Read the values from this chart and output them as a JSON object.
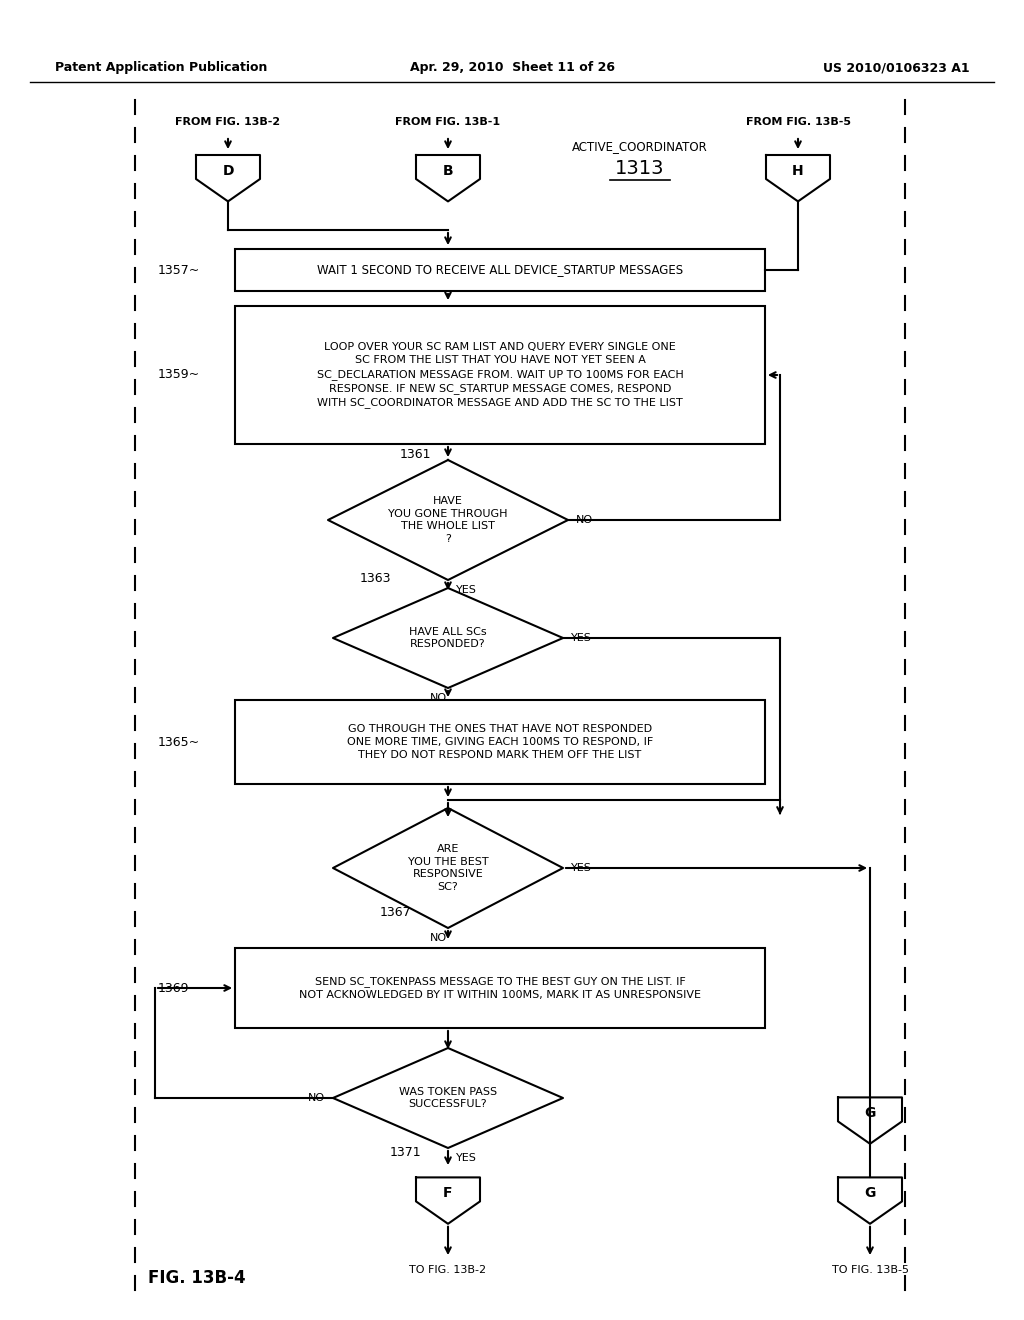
{
  "title_left": "Patent Application Publication",
  "title_mid": "Apr. 29, 2010  Sheet 11 of 26",
  "title_right": "US 2010/0106323 A1",
  "fig_label": "FIG. 13B-4",
  "page_bg": "#ffffff",
  "line_color": "#000000",
  "text_color": "#000000",
  "connector_D": "D",
  "connector_B": "B",
  "connector_H": "H",
  "connector_F": "F",
  "connector_G": "G",
  "label_from_D": "FROM FIG. 13B-2",
  "label_from_B": "FROM FIG. 13B-1",
  "label_from_H": "FROM FIG. 13B-5",
  "label_active": "ACTIVE_COORDINATOR",
  "label_1313": "1313",
  "box1357_text": "WAIT 1 SECOND TO RECEIVE ALL DEVICE_STARTUP MESSAGES",
  "label_1357": "1357",
  "box1359_text": "LOOP OVER YOUR SC RAM LIST AND QUERY EVERY SINGLE ONE\nSC FROM THE LIST THAT YOU HAVE NOT YET SEEN A\nSC_DECLARATION MESSAGE FROM. WAIT UP TO 100MS FOR EACH\nRESPONSE. IF NEW SC_STARTUP MESSAGE COMES, RESPOND\nWITH SC_COORDINATOR MESSAGE AND ADD THE SC TO THE LIST",
  "label_1359": "1359",
  "diamond1361_text": "HAVE\nYOU GONE THROUGH\nTHE WHOLE LIST\n?",
  "label_1361": "1361",
  "diamond1363_text": "HAVE ALL SCs\nRESPONDED?",
  "label_1363": "1363",
  "box1365_text": "GO THROUGH THE ONES THAT HAVE NOT RESPONDED\nONE MORE TIME, GIVING EACH 100MS TO RESPOND, IF\nTHEY DO NOT RESPOND MARK THEM OFF THE LIST",
  "label_1365": "1365",
  "diamond1367_text": "ARE\nYOU THE BEST\nRESPONSIVE\nSC?",
  "label_1367": "1367",
  "box1369_text": "SEND SC_TOKENPASS MESSAGE TO THE BEST GUY ON THE LIST. IF\nNOT ACKNOWLEDGED BY IT WITHIN 100MS, MARK IT AS UNRESPONSIVE",
  "label_1369": "1369",
  "diamond1371_text": "WAS TOKEN PASS\nSUCCESSFUL?",
  "label_1371": "1371",
  "label_to_F": "TO FIG. 13B-2",
  "label_to_G": "TO FIG. 13B-5"
}
